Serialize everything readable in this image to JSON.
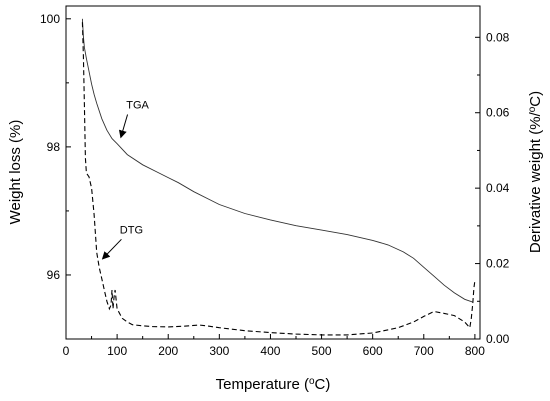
{
  "chart_data": {
    "type": "line",
    "title": "",
    "xlabel": "Temperature (",
    "xlabel_degree": "o",
    "xlabel_unit": "C)",
    "ylabel_left": "Weight loss (%)",
    "ylabel_right": "Derivative weight (%/",
    "ylabel_right_degree": "o",
    "ylabel_right_unit": "C)",
    "xlim": [
      0,
      810
    ],
    "ylim_left": [
      95.0,
      100.2
    ],
    "ylim_right": [
      0.0,
      0.0883
    ],
    "x_ticks": [
      "0",
      "100",
      "200",
      "300",
      "400",
      "500",
      "600",
      "700",
      "800"
    ],
    "y_left_ticks": [
      "96",
      "98",
      "100"
    ],
    "y_right_ticks": [
      "0.00",
      "0.02",
      "0.04",
      "0.06",
      "0.08"
    ],
    "grid": false,
    "series": [
      {
        "name": "TGA",
        "axis": "left",
        "style": "solid",
        "x": [
          32,
          34,
          36,
          40,
          45,
          50,
          55,
          60,
          70,
          80,
          90,
          100,
          120,
          150,
          180,
          200,
          220,
          250,
          280,
          300,
          350,
          400,
          450,
          500,
          550,
          600,
          630,
          660,
          680,
          700,
          720,
          740,
          760,
          780,
          795
        ],
        "y": [
          100.0,
          99.72,
          99.55,
          99.38,
          99.18,
          98.98,
          98.82,
          98.68,
          98.44,
          98.26,
          98.13,
          98.05,
          97.88,
          97.72,
          97.6,
          97.52,
          97.44,
          97.3,
          97.18,
          97.1,
          96.96,
          96.86,
          96.77,
          96.7,
          96.63,
          96.54,
          96.47,
          96.36,
          96.26,
          96.12,
          95.98,
          95.84,
          95.72,
          95.62,
          95.58
        ]
      },
      {
        "name": "DTG",
        "axis": "right",
        "style": "dashed",
        "x": [
          32,
          34,
          36,
          38,
          40,
          45,
          50,
          55,
          60,
          65,
          70,
          75,
          80,
          85,
          88,
          90,
          92,
          94,
          96,
          100,
          110,
          120,
          130,
          150,
          170,
          200,
          230,
          260,
          280,
          300,
          350,
          400,
          450,
          500,
          550,
          600,
          650,
          680,
          700,
          720,
          740,
          760,
          780,
          790,
          793,
          796,
          798,
          800
        ],
        "y": [
          0.084,
          0.075,
          0.062,
          0.048,
          0.044,
          0.043,
          0.04,
          0.033,
          0.023,
          0.019,
          0.016,
          0.013,
          0.01,
          0.008,
          0.009,
          0.013,
          0.008,
          0.011,
          0.013,
          0.008,
          0.0055,
          0.0045,
          0.0038,
          0.0035,
          0.0033,
          0.0032,
          0.0034,
          0.0037,
          0.0034,
          0.003,
          0.0022,
          0.0017,
          0.0013,
          0.0011,
          0.0011,
          0.0016,
          0.003,
          0.0045,
          0.006,
          0.0073,
          0.0068,
          0.0062,
          0.0045,
          0.003,
          0.0055,
          0.0095,
          0.0135,
          0.0155
        ]
      }
    ],
    "annotations": [
      {
        "text": "TGA",
        "x": 140,
        "y_left": 98.6,
        "points_to": {
          "x": 100,
          "y_left": 98.1
        }
      },
      {
        "text": "DTG",
        "x": 128,
        "y_left": 96.65,
        "points_to": {
          "x": 65,
          "y_left": 96.2
        }
      }
    ]
  }
}
